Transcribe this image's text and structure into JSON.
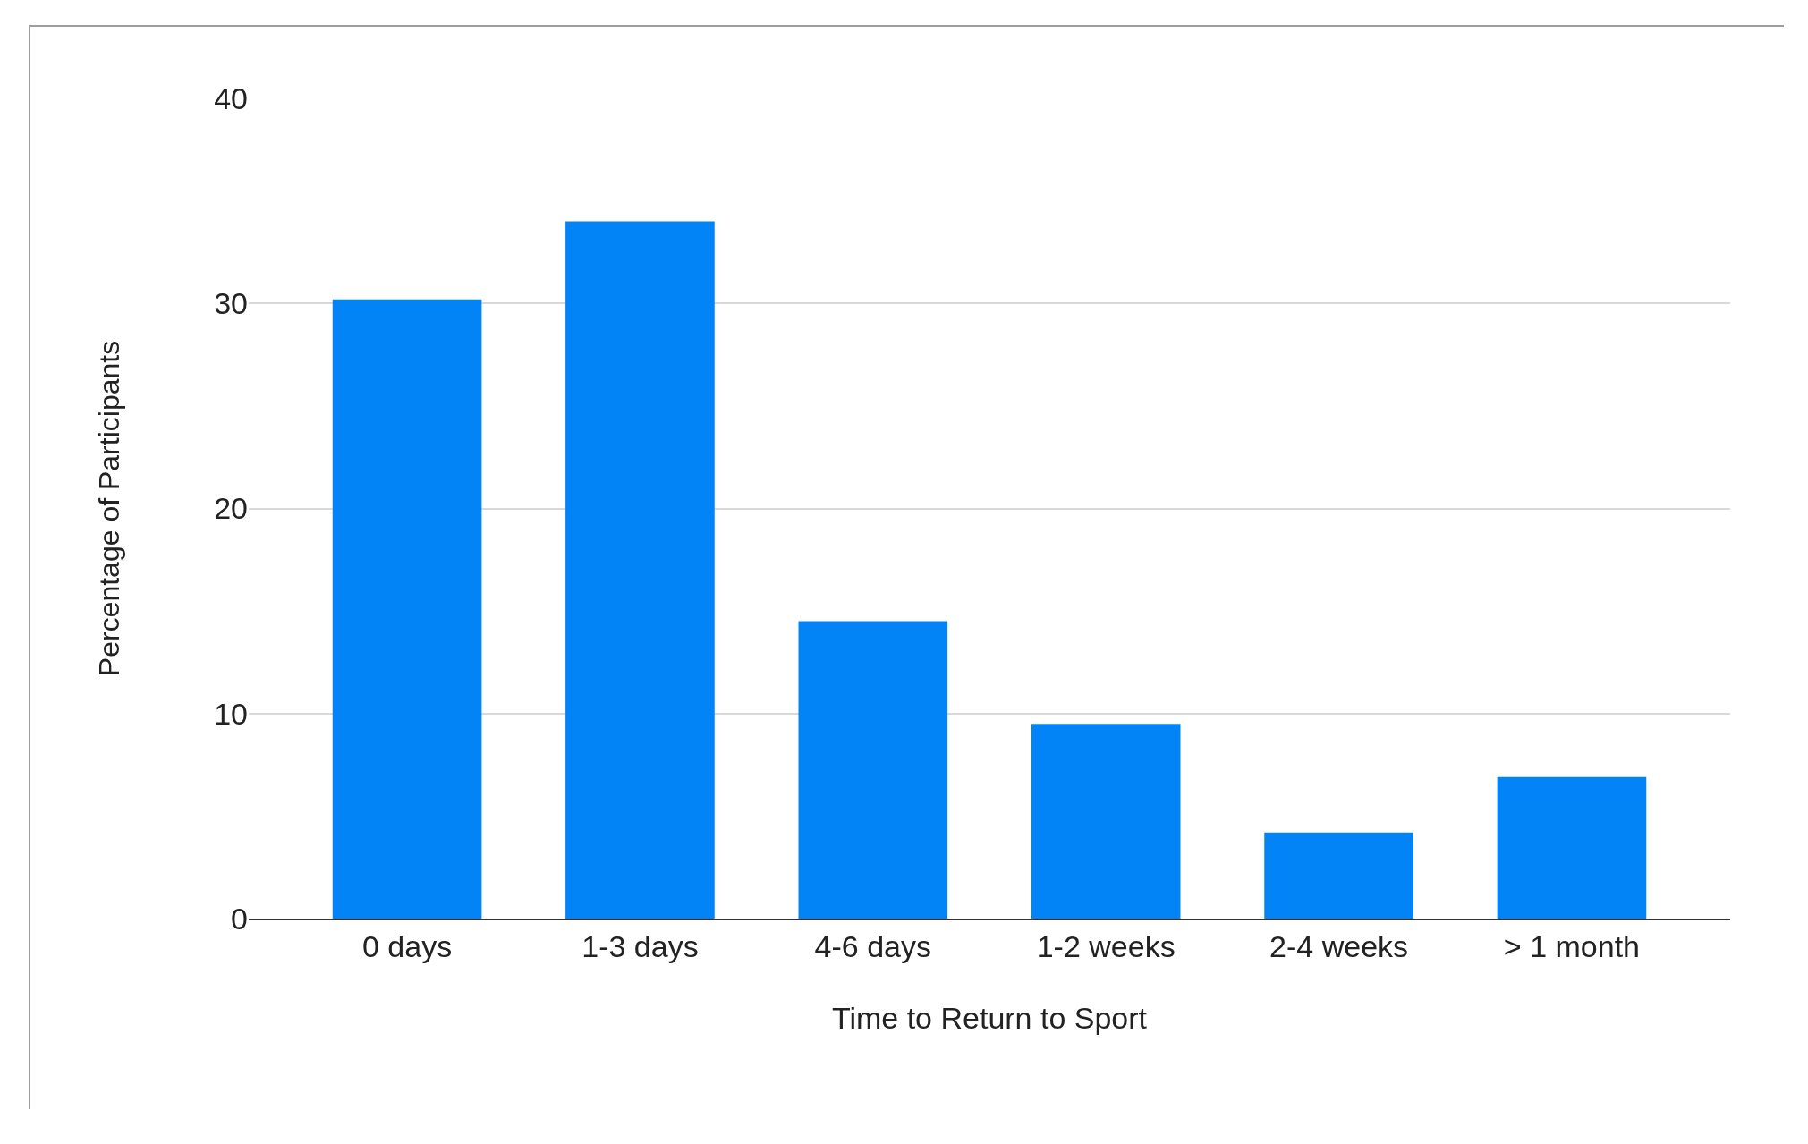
{
  "chart_data": {
    "type": "bar",
    "xlabel": "Time to Return to Sport",
    "ylabel": "Percentage of Participants",
    "categories": [
      "0 days",
      "1-3 days",
      "4-6 days",
      "1-2 weeks",
      "2-4 weeks",
      "> 1 month"
    ],
    "values": [
      30.2,
      34.0,
      14.5,
      9.5,
      4.2,
      6.9
    ],
    "color": "#0284f7",
    "ylim": [
      0,
      40
    ],
    "yticks": [
      0,
      10,
      20,
      30,
      40
    ],
    "grid": "y"
  }
}
